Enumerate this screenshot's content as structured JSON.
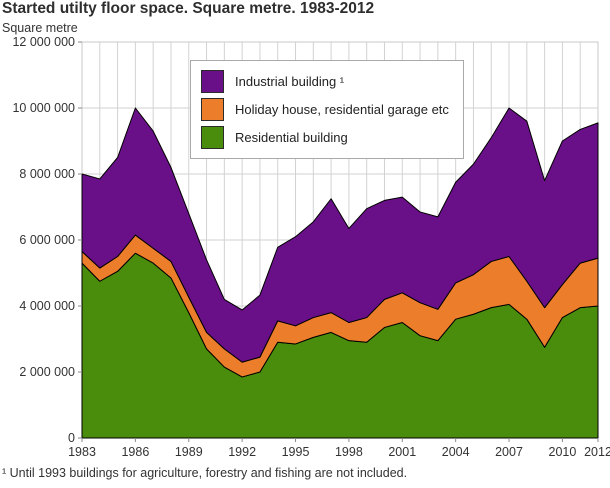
{
  "title": "Started utilty floor space. Square metre. 1983-2012",
  "y_axis_unit": "Square metre",
  "footnote": "¹ Until 1993 buildings for agriculture, forestry and fishing are not included.",
  "legend": {
    "items": [
      {
        "label": "Industrial building ¹",
        "color": "#690f87"
      },
      {
        "label": "Holiday house, residential garage etc",
        "color": "#ec7d2b"
      },
      {
        "label": "Residential building",
        "color": "#4a8c0c"
      }
    ]
  },
  "chart_data": {
    "type": "area",
    "stacked": true,
    "title": "Started utilty floor space. Square metre. 1983-2012",
    "ylabel": "Square metre",
    "xlabel": "",
    "grid": true,
    "legend_position": "top-center",
    "ylim": [
      0,
      12000000
    ],
    "yticks": [
      0,
      2000000,
      4000000,
      6000000,
      8000000,
      10000000,
      12000000
    ],
    "ytick_labels": [
      "0",
      "2 000 000",
      "4 000 000",
      "6 000 000",
      "8 000 000",
      "10 000 000",
      "12 000 000"
    ],
    "xtick_years": [
      1983,
      1986,
      1989,
      1992,
      1995,
      1998,
      2001,
      2004,
      2007,
      2010,
      2012
    ],
    "x": [
      1983,
      1984,
      1985,
      1986,
      1987,
      1988,
      1989,
      1990,
      1991,
      1992,
      1993,
      1994,
      1995,
      1996,
      1997,
      1998,
      1999,
      2000,
      2001,
      2002,
      2003,
      2004,
      2005,
      2006,
      2007,
      2008,
      2009,
      2010,
      2011,
      2012
    ],
    "series": [
      {
        "id": "residential",
        "name": "Residential building",
        "color": "#4a8c0c",
        "values": [
          5300000,
          4750000,
          5050000,
          5600000,
          5300000,
          4850000,
          3800000,
          2700000,
          2150000,
          1850000,
          2000000,
          2900000,
          2850000,
          3050000,
          3200000,
          2950000,
          2900000,
          3350000,
          3500000,
          3100000,
          2950000,
          3600000,
          3750000,
          3950000,
          4050000,
          3600000,
          2750000,
          3650000,
          3950000,
          4000000
        ]
      },
      {
        "id": "holiday",
        "name": "Holiday house, residential garage etc",
        "color": "#ec7d2b",
        "values": [
          350000,
          400000,
          450000,
          550000,
          450000,
          500000,
          470000,
          500000,
          550000,
          450000,
          450000,
          650000,
          550000,
          600000,
          600000,
          550000,
          750000,
          850000,
          900000,
          1000000,
          950000,
          1100000,
          1200000,
          1400000,
          1450000,
          1150000,
          1200000,
          1000000,
          1350000,
          1450000
        ]
      },
      {
        "id": "industrial",
        "name": "Industrial building ¹",
        "color": "#690f87",
        "values": [
          2350000,
          2700000,
          3000000,
          3850000,
          3550000,
          2850000,
          2530000,
          2200000,
          1500000,
          1580000,
          1880000,
          2230000,
          2700000,
          2900000,
          3450000,
          2850000,
          3300000,
          3000000,
          2900000,
          2750000,
          2800000,
          3050000,
          3350000,
          3750000,
          4500000,
          4850000,
          3850000,
          4350000,
          4050000,
          4100000
        ]
      }
    ]
  }
}
